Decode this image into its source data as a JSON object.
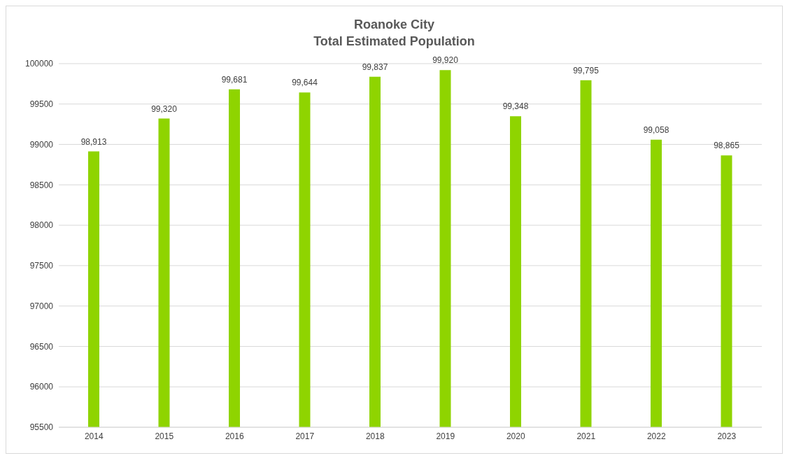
{
  "chart_data": {
    "type": "bar",
    "title": "Roanoke City\nTotal Estimated Population",
    "categories": [
      "2014",
      "2015",
      "2016",
      "2017",
      "2018",
      "2019",
      "2020",
      "2021",
      "2022",
      "2023"
    ],
    "values": [
      98913,
      99320,
      99681,
      99644,
      99837,
      99920,
      99348,
      99795,
      99058,
      98865
    ],
    "color": "#8fd400",
    "ylim": [
      95500,
      100000
    ],
    "yticks": [
      95500,
      96000,
      96500,
      97000,
      97500,
      98000,
      98500,
      99000,
      99500,
      100000
    ],
    "value_labels": [
      "98,913",
      "99,320",
      "99,681",
      "99,644",
      "99,837",
      "99,920",
      "99,348",
      "99,795",
      "99,058",
      "98,865"
    ],
    "grid": "y"
  }
}
